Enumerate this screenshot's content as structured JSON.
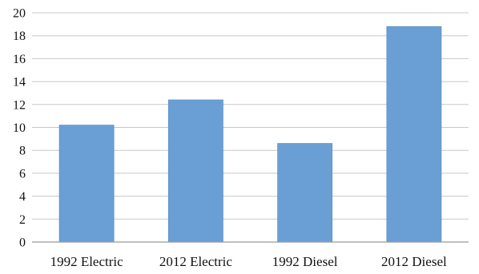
{
  "chart_data": {
    "type": "bar",
    "categories": [
      "1992 Electric",
      "2012 Electric",
      "1992 Diesel",
      "2012 Diesel"
    ],
    "values": [
      10.2,
      12.4,
      8.6,
      18.8
    ],
    "title": "",
    "xlabel": "",
    "ylabel": "",
    "ylim": [
      0,
      20
    ],
    "yticks": [
      0,
      2,
      4,
      6,
      8,
      10,
      12,
      14,
      16,
      18,
      20
    ],
    "grid": true,
    "legend": "none",
    "bar_color": "#6a9fd6",
    "bar_edge_color": "#5b8fc6"
  }
}
